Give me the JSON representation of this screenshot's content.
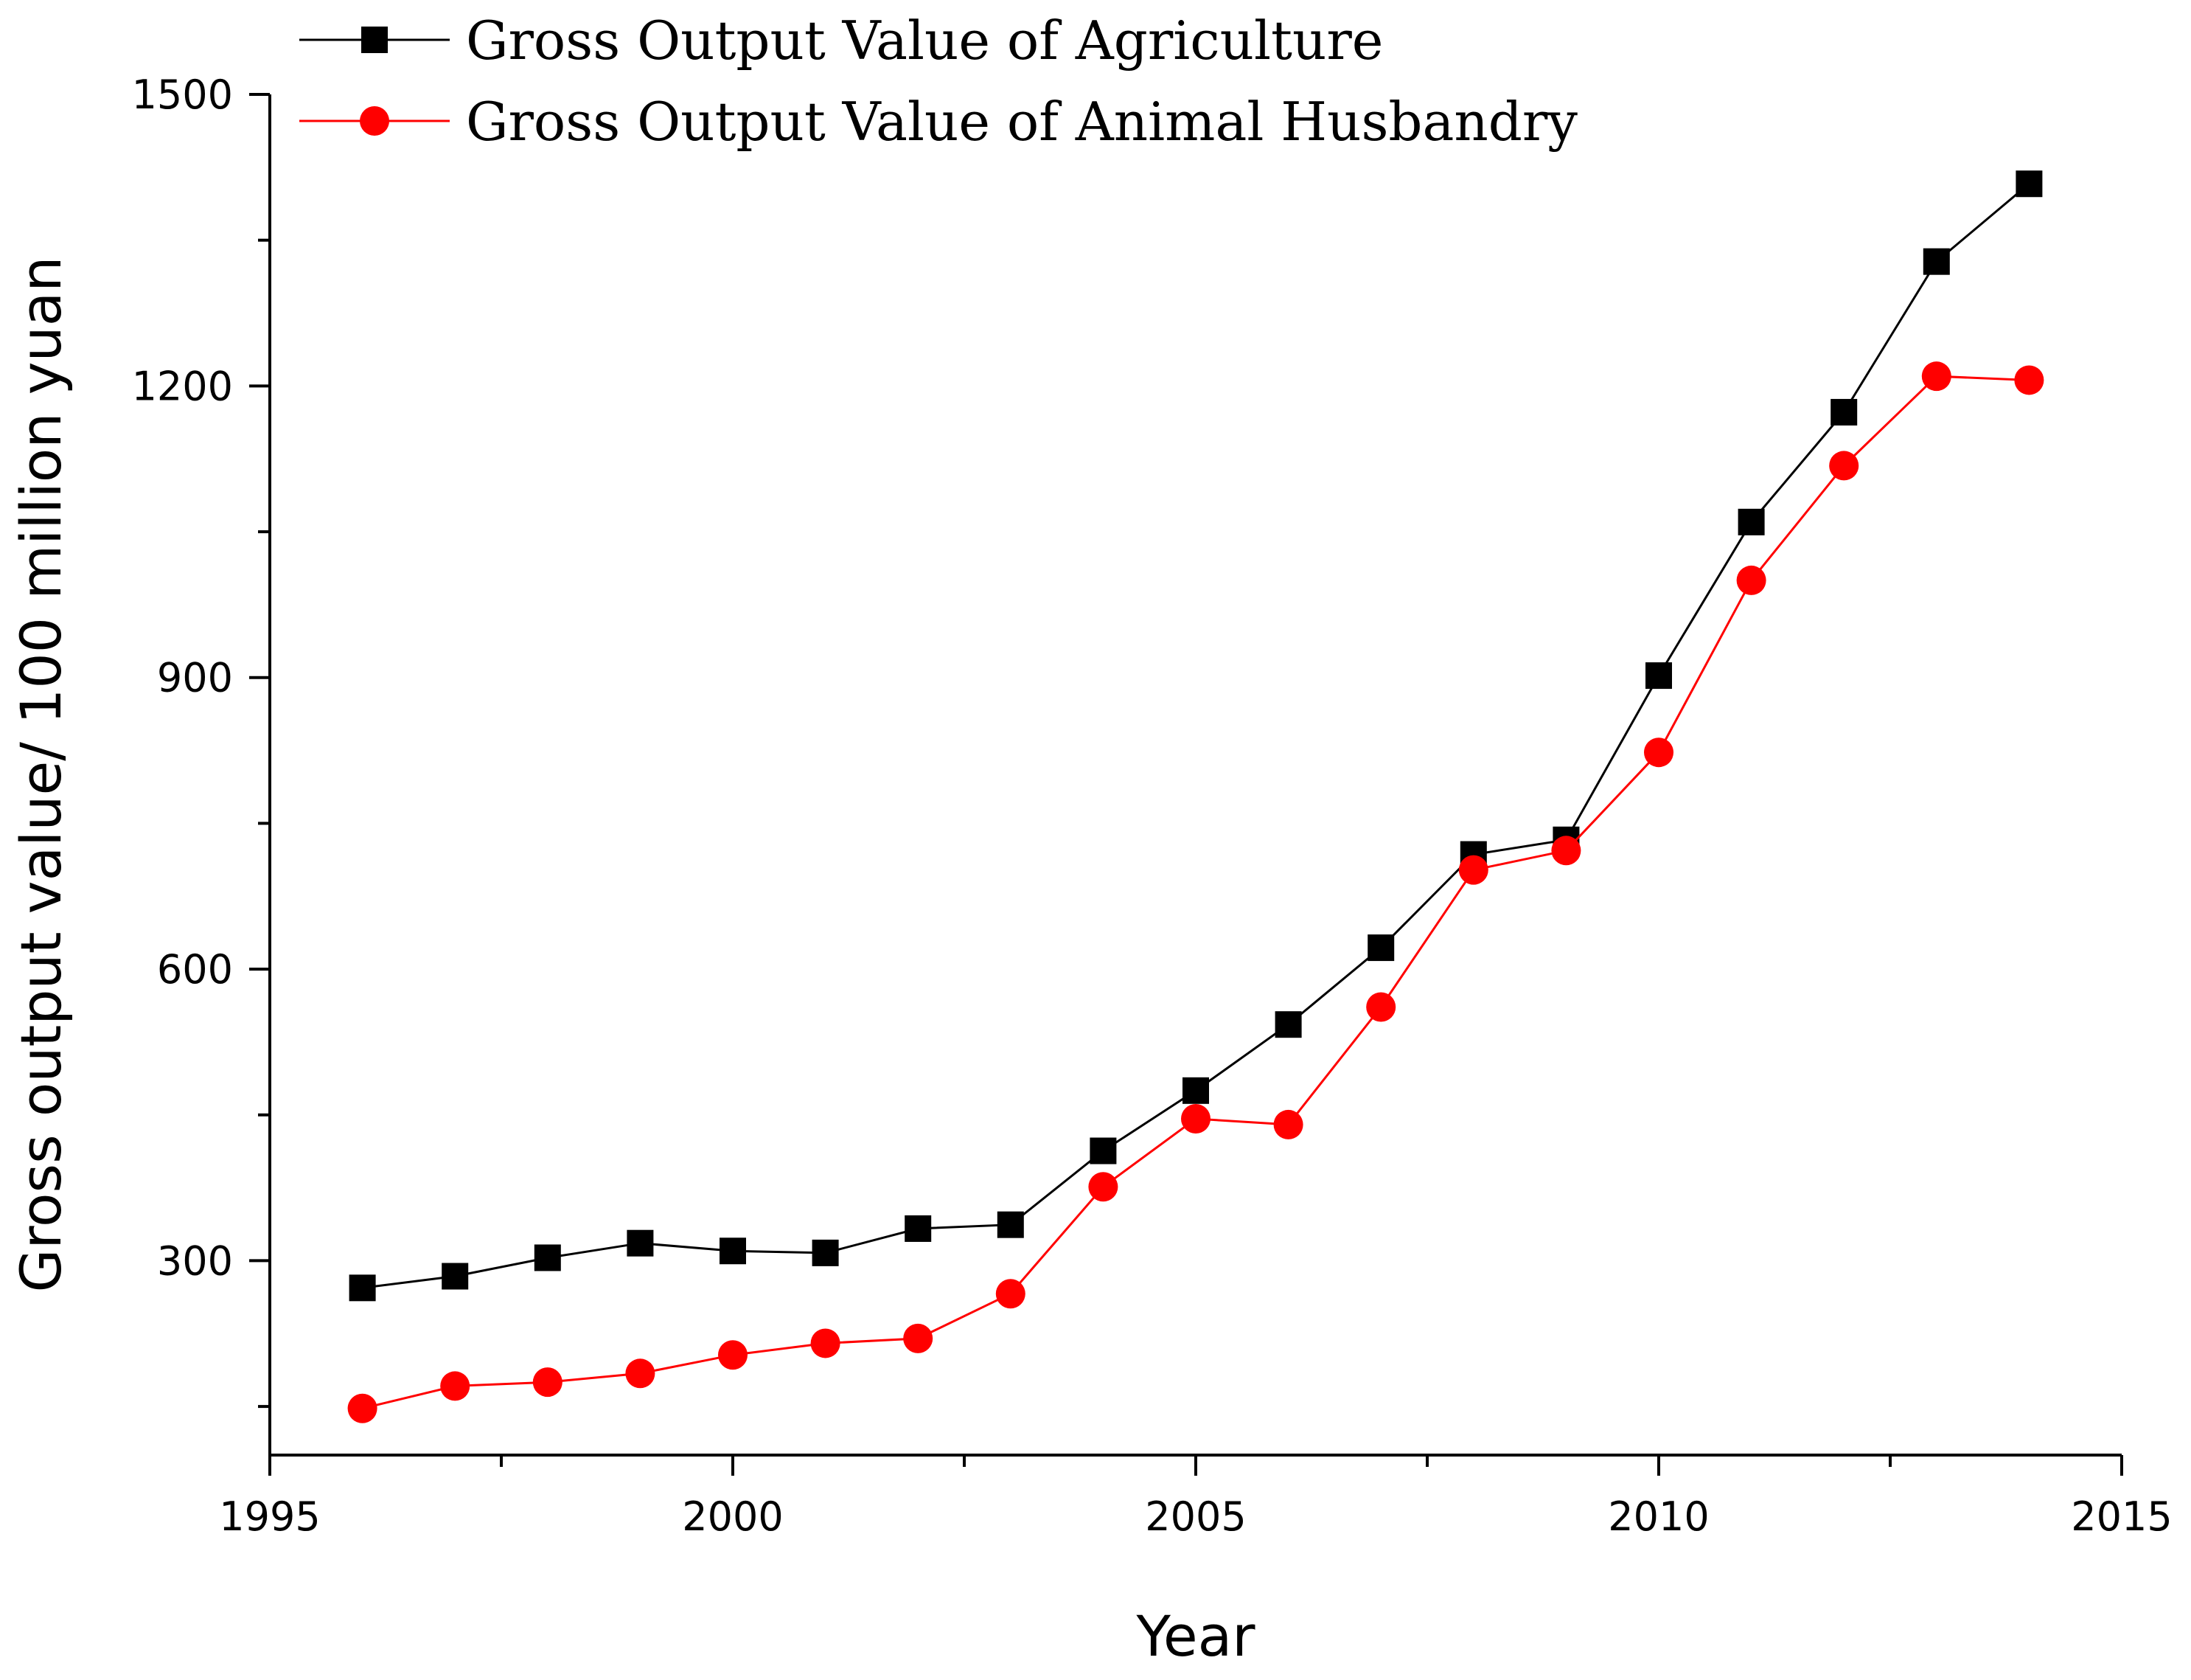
{
  "chart_data": {
    "type": "line",
    "title": "",
    "xlabel": "Year",
    "ylabel": "Gross output value/ 100 million yuan",
    "xlim": [
      1995,
      2015
    ],
    "ylim": [
      100,
      1500
    ],
    "x_major_ticks": [
      1995,
      2000,
      2005,
      2010,
      2015
    ],
    "x_minor_ticks": [
      1997.5,
      2002.5,
      2007.5,
      2012.5
    ],
    "y_major_ticks": [
      300,
      600,
      900,
      1200,
      1500
    ],
    "y_minor_ticks": [
      150,
      450,
      750,
      1050,
      1350
    ],
    "grid": false,
    "legend_position": "top-left",
    "x": [
      1996,
      1997,
      1998,
      1999,
      2000,
      2001,
      2002,
      2003,
      2004,
      2005,
      2006,
      2007,
      2008,
      2009,
      2010,
      2011,
      2012,
      2013,
      2014
    ],
    "series": [
      {
        "name": "Gross Output Value of Agriculture",
        "color": "#000000",
        "marker": "square",
        "values": [
          272,
          284,
          303,
          318,
          310,
          308,
          333,
          337,
          413,
          475,
          543,
          622,
          718,
          733,
          902,
          1060,
          1173,
          1328,
          1408
        ]
      },
      {
        "name": "Gross Output Value of Animal Husbandry",
        "color": "#ff0000",
        "marker": "circle",
        "values": [
          148,
          171,
          175,
          184,
          203,
          215,
          220,
          266,
          376,
          446,
          440,
          561,
          702,
          722,
          823,
          1000,
          1118,
          1210,
          1206
        ]
      }
    ]
  }
}
